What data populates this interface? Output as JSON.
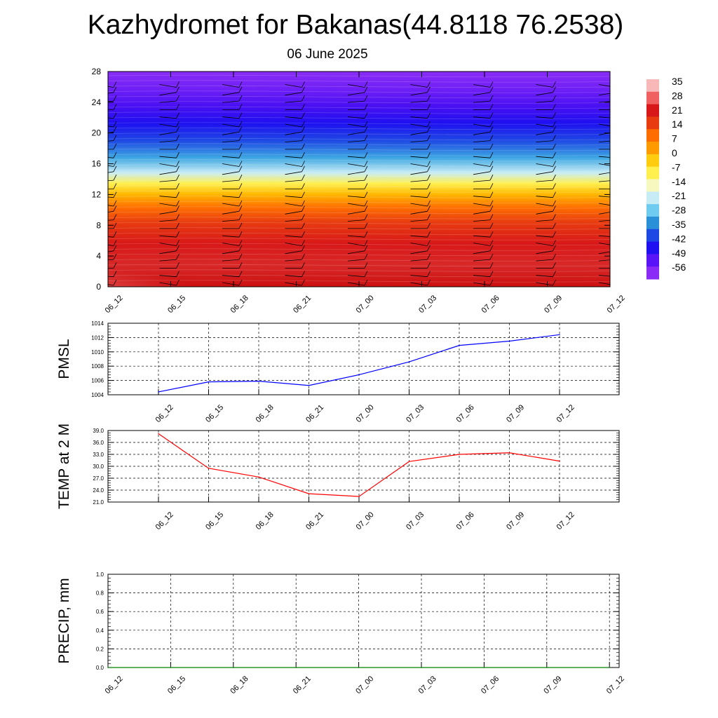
{
  "header": {
    "title": "Kazhydromet for Bakanas(44.8118 76.2538)",
    "date": "06 June 2025"
  },
  "chart_data": [
    {
      "type": "heatmap",
      "id": "cross_section",
      "x_ticks": [
        "06_12",
        "06_15",
        "06_18",
        "06_21",
        "07_00",
        "07_03",
        "07_06",
        "07_09",
        "07_12"
      ],
      "y_ticks": [
        "0",
        "4",
        "8",
        "12",
        "16",
        "20",
        "24",
        "28"
      ],
      "ylim": [
        0,
        28
      ],
      "colorbar": {
        "labels": [
          "35",
          "28",
          "21",
          "14",
          "7",
          "0",
          "-7",
          "-14",
          "-21",
          "-28",
          "-35",
          "-42",
          "-49",
          "-56"
        ],
        "colors": [
          "#f9b8b8",
          "#f06060",
          "#d81818",
          "#e83c10",
          "#ff6c00",
          "#ff9a00",
          "#ffcc10",
          "#fff050",
          "#f7f7c0",
          "#c8ecf6",
          "#6fcbf0",
          "#2a90d8",
          "#1e48e4",
          "#1e10f0",
          "#5a14f8",
          "#8a2cf6"
        ]
      },
      "wind_barbs": true
    },
    {
      "type": "line",
      "id": "pmsl",
      "ylabel": "PMSL",
      "x": [
        "06_12",
        "06_15",
        "06_18",
        "06_21",
        "07_00",
        "07_03",
        "07_06",
        "07_09",
        "07_12"
      ],
      "series": [
        {
          "values": [
            1004.4,
            1005.8,
            1005.9,
            1005.3,
            1006.8,
            1008.6,
            1010.9,
            1011.5,
            1012.4
          ],
          "color": "#0000ff"
        }
      ],
      "y_ticks": [
        "1004",
        "1006",
        "1008",
        "1010",
        "1012",
        "1014"
      ],
      "ylim": [
        1004,
        1014
      ],
      "grid": true
    },
    {
      "type": "line",
      "id": "temp2m",
      "ylabel": "TEMP at 2 M",
      "x": [
        "06_12",
        "06_15",
        "06_18",
        "06_21",
        "07_00",
        "07_03",
        "07_06",
        "07_09",
        "07_12"
      ],
      "series": [
        {
          "values": [
            38.2,
            29.5,
            27.3,
            23.1,
            22.4,
            31.2,
            33.0,
            33.4,
            31.3
          ],
          "color": "#ff0000"
        }
      ],
      "y_ticks": [
        "21.0",
        "24.0",
        "27.0",
        "30.0",
        "33.0",
        "36.0",
        "39.0"
      ],
      "ylim": [
        21,
        39
      ],
      "grid": true
    },
    {
      "type": "line",
      "id": "precip",
      "ylabel": "PRECIP, mm",
      "x": [
        "06_12",
        "06_15",
        "06_18",
        "06_21",
        "07_00",
        "07_03",
        "07_06",
        "07_09",
        "07_12"
      ],
      "series": [
        {
          "values": [
            0,
            0,
            0,
            0,
            0,
            0,
            0,
            0,
            0
          ],
          "color": "#008000"
        }
      ],
      "y_ticks": [
        "0.0",
        "0.2",
        "0.4",
        "0.6",
        "0.8",
        "1.0"
      ],
      "ylim": [
        0,
        1
      ],
      "grid": true
    }
  ]
}
